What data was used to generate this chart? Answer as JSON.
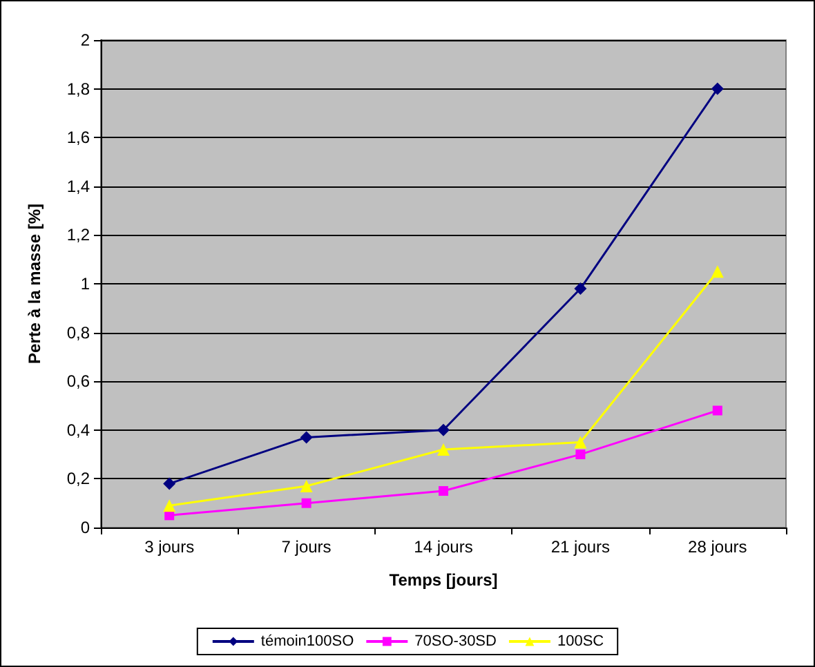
{
  "chart_data": {
    "type": "line",
    "xlabel": "Temps [jours]",
    "ylabel": "Perte à la masse [%]",
    "categories": [
      "3 jours",
      "7 jours",
      "14 jours",
      "21 jours",
      "28 jours"
    ],
    "series": [
      {
        "name": "témoin100SO",
        "color": "#000080",
        "marker": "diamond",
        "values": [
          0.18,
          0.37,
          0.4,
          0.98,
          1.8
        ]
      },
      {
        "name": "70SO-30SD",
        "color": "#ff00ff",
        "marker": "square",
        "values": [
          0.05,
          0.1,
          0.15,
          0.3,
          0.48
        ]
      },
      {
        "name": "100SC",
        "color": "#ffff00",
        "marker": "triangle",
        "values": [
          0.09,
          0.17,
          0.32,
          0.35,
          1.05
        ]
      }
    ],
    "ylim": [
      0,
      2
    ],
    "yticks": [
      0,
      {
        "value": 0.2,
        "label": "0,2"
      },
      {
        "value": 0.4,
        "label": "0,4"
      },
      {
        "value": 0.6,
        "label": "0,6"
      },
      {
        "value": 0.8,
        "label": "0,8"
      },
      1,
      {
        "value": 1.2,
        "label": "1,2"
      },
      {
        "value": 1.4,
        "label": "1,4"
      },
      {
        "value": 1.6,
        "label": "1,6"
      },
      {
        "value": 1.8,
        "label": "1,8"
      },
      2
    ],
    "grid": "y",
    "legend": "bottom",
    "line_style": "solid"
  }
}
